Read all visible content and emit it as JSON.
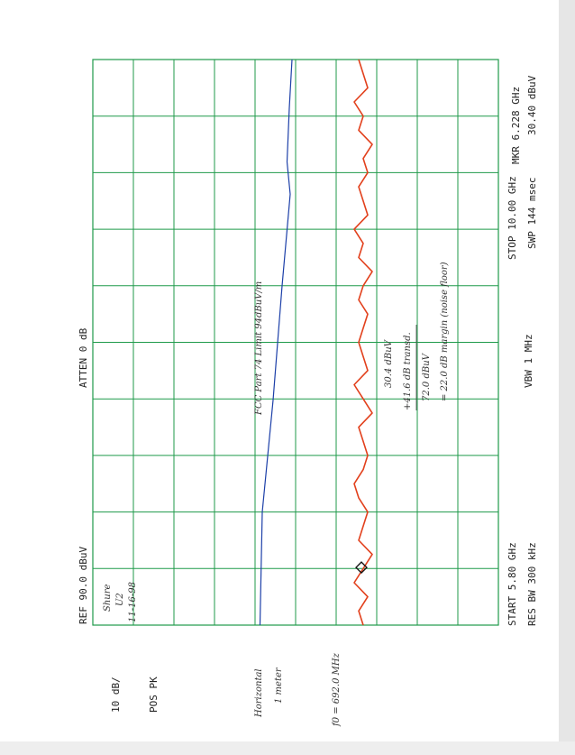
{
  "chart_data": {
    "type": "line",
    "labels": {
      "ref": "REF 90.0 dBuV",
      "scale": "10 dB/",
      "detector": "POS PK",
      "atten": "ATTEN 0 dB",
      "marker_freq": "MKR 6.228 GHz",
      "marker_level": "30.40 dBuV",
      "start": "START 5.80 GHz",
      "rbw": "RES BW 300 kHz",
      "vbw": "VBW 1 MHz",
      "stop": "STOP 10.00 GHz",
      "sweep": "SWP 144 msec"
    },
    "notes": {
      "device": "Shure",
      "model": "U2",
      "date": "11-16-98",
      "limit": "FCC Part 74 Limit 94dBuV/m",
      "reading": "30.4 dBuV",
      "transducer": "+41.6 dB transd.",
      "total": "72.0 dBuV",
      "margin": "= 22.0 dB margin (noise floor)",
      "polarization": "Horizontal",
      "distance": "1 meter",
      "fundamental": "f0 = 692.0 MHz"
    },
    "xlim": [
      5.8,
      10.0
    ],
    "ylim": [
      0,
      90
    ],
    "marker": {
      "x": 6.228,
      "y": 30.4
    },
    "series": [
      {
        "color": "#e2401c",
        "x": [
          5.8,
          5.905,
          6.01,
          6.115,
          6.22,
          6.325,
          6.43,
          6.535,
          6.64,
          6.745,
          6.85,
          6.955,
          7.06,
          7.165,
          7.27,
          7.375,
          7.48,
          7.585,
          7.69,
          7.795,
          7.9,
          8.005,
          8.11,
          8.215,
          8.32,
          8.425,
          8.53,
          8.635,
          8.74,
          8.845,
          8.95,
          9.055,
          9.16,
          9.265,
          9.37,
          9.475,
          9.58,
          9.685,
          9.79,
          9.895,
          10.0
        ],
        "values": [
          30,
          31,
          29,
          32,
          30,
          28,
          31,
          30,
          29,
          31,
          32,
          30,
          29,
          30,
          31,
          28,
          30,
          32,
          29,
          30,
          31,
          30,
          29,
          31,
          30,
          28,
          31,
          30,
          32,
          29,
          30,
          31,
          29,
          30,
          28,
          31,
          30,
          32,
          29,
          30,
          31
        ]
      },
      {
        "color": "#1c3fa8",
        "x": [
          5.8,
          6.64,
          7.47,
          8.32,
          9.0,
          9.24,
          9.64,
          10.0
        ],
        "values": [
          52.9,
          52.4,
          50.0,
          48.0,
          46.2,
          46.9,
          46.4,
          45.8
        ]
      }
    ]
  }
}
